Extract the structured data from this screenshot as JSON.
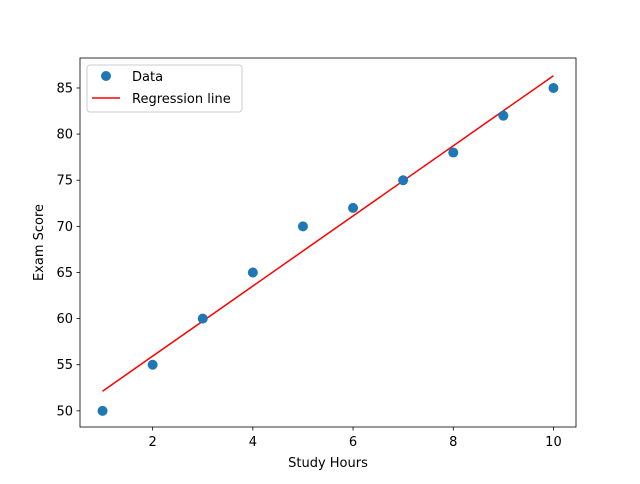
{
  "chart_data": {
    "type": "scatter",
    "title": "",
    "xlabel": "Study Hours",
    "ylabel": "Exam Score",
    "xlim": [
      0.55,
      10.45
    ],
    "ylim": [
      48.25,
      88.25
    ],
    "xticks": [
      2,
      4,
      6,
      8,
      10
    ],
    "yticks": [
      50,
      55,
      60,
      65,
      70,
      75,
      80,
      85
    ],
    "grid": false,
    "legend_position": "top-left",
    "series": [
      {
        "name": "Data",
        "type": "scatter",
        "color": "#1f77b4",
        "x": [
          1,
          2,
          3,
          4,
          5,
          6,
          7,
          8,
          9,
          10
        ],
        "y": [
          50,
          55,
          60,
          65,
          70,
          72,
          75,
          78,
          82,
          85
        ]
      },
      {
        "name": "Regression line",
        "type": "line",
        "color": "#ff0000",
        "x": [
          1,
          10
        ],
        "y": [
          52.13,
          86.33
        ]
      }
    ]
  }
}
